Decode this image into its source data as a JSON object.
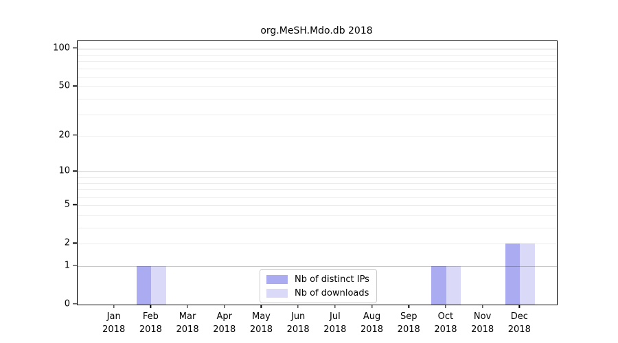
{
  "chart_data": {
    "type": "bar",
    "title": "org.MeSH.Mdo.db 2018",
    "categories": [
      "Jan 2018",
      "Feb 2018",
      "Mar 2018",
      "Apr 2018",
      "May 2018",
      "Jun 2018",
      "Jul 2018",
      "Aug 2018",
      "Sep 2018",
      "Oct 2018",
      "Nov 2018",
      "Dec 2018"
    ],
    "series": [
      {
        "name": "Nb of distinct IPs",
        "color": "#ababf2",
        "values": [
          0,
          1,
          0,
          0,
          0,
          0,
          0,
          0,
          0,
          1,
          0,
          2
        ]
      },
      {
        "name": "Nb of downloads",
        "color": "#dadaf8",
        "values": [
          0,
          1,
          0,
          0,
          0,
          0,
          0,
          0,
          0,
          1,
          0,
          2
        ]
      }
    ],
    "yscale": "log1p",
    "ylim": [
      0,
      115
    ],
    "yticks": [
      0,
      1,
      2,
      5,
      10,
      20,
      50,
      100
    ],
    "ytick_labels": [
      "0",
      "1",
      "2",
      "5",
      "10",
      "20",
      "50",
      "100"
    ],
    "major_gridlines": [
      1,
      10,
      100
    ],
    "minor_gridlines": [
      2,
      3,
      4,
      5,
      6,
      7,
      8,
      9,
      20,
      30,
      40,
      50,
      60,
      70,
      80,
      90
    ],
    "grid": "on",
    "legend_position": "lower center inside plot",
    "colors": {
      "major_grid": "#c9c9c9",
      "minor_grid": "#ededed",
      "axis": "#000000",
      "background": "#ffffff"
    }
  }
}
